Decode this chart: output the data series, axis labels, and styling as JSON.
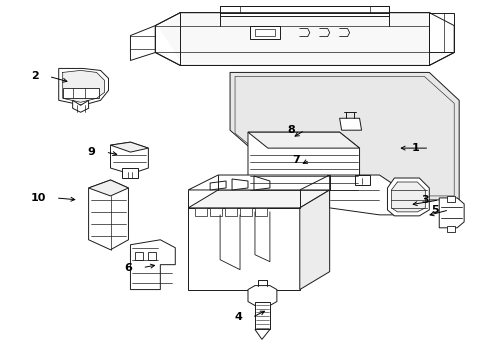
{
  "background_color": "#ffffff",
  "line_color": "#1a1a1a",
  "label_color": "#000000",
  "figsize": [
    4.89,
    3.6
  ],
  "dpi": 100,
  "labels_info": [
    [
      1,
      430,
      148,
      398,
      148
    ],
    [
      2,
      48,
      76,
      70,
      82
    ],
    [
      3,
      440,
      200,
      410,
      205
    ],
    [
      4,
      252,
      318,
      268,
      310
    ],
    [
      5,
      450,
      210,
      427,
      216
    ],
    [
      6,
      142,
      268,
      158,
      265
    ],
    [
      7,
      310,
      160,
      300,
      165
    ],
    [
      8,
      305,
      130,
      292,
      138
    ],
    [
      9,
      105,
      152,
      120,
      155
    ],
    [
      10,
      55,
      198,
      78,
      200
    ]
  ]
}
